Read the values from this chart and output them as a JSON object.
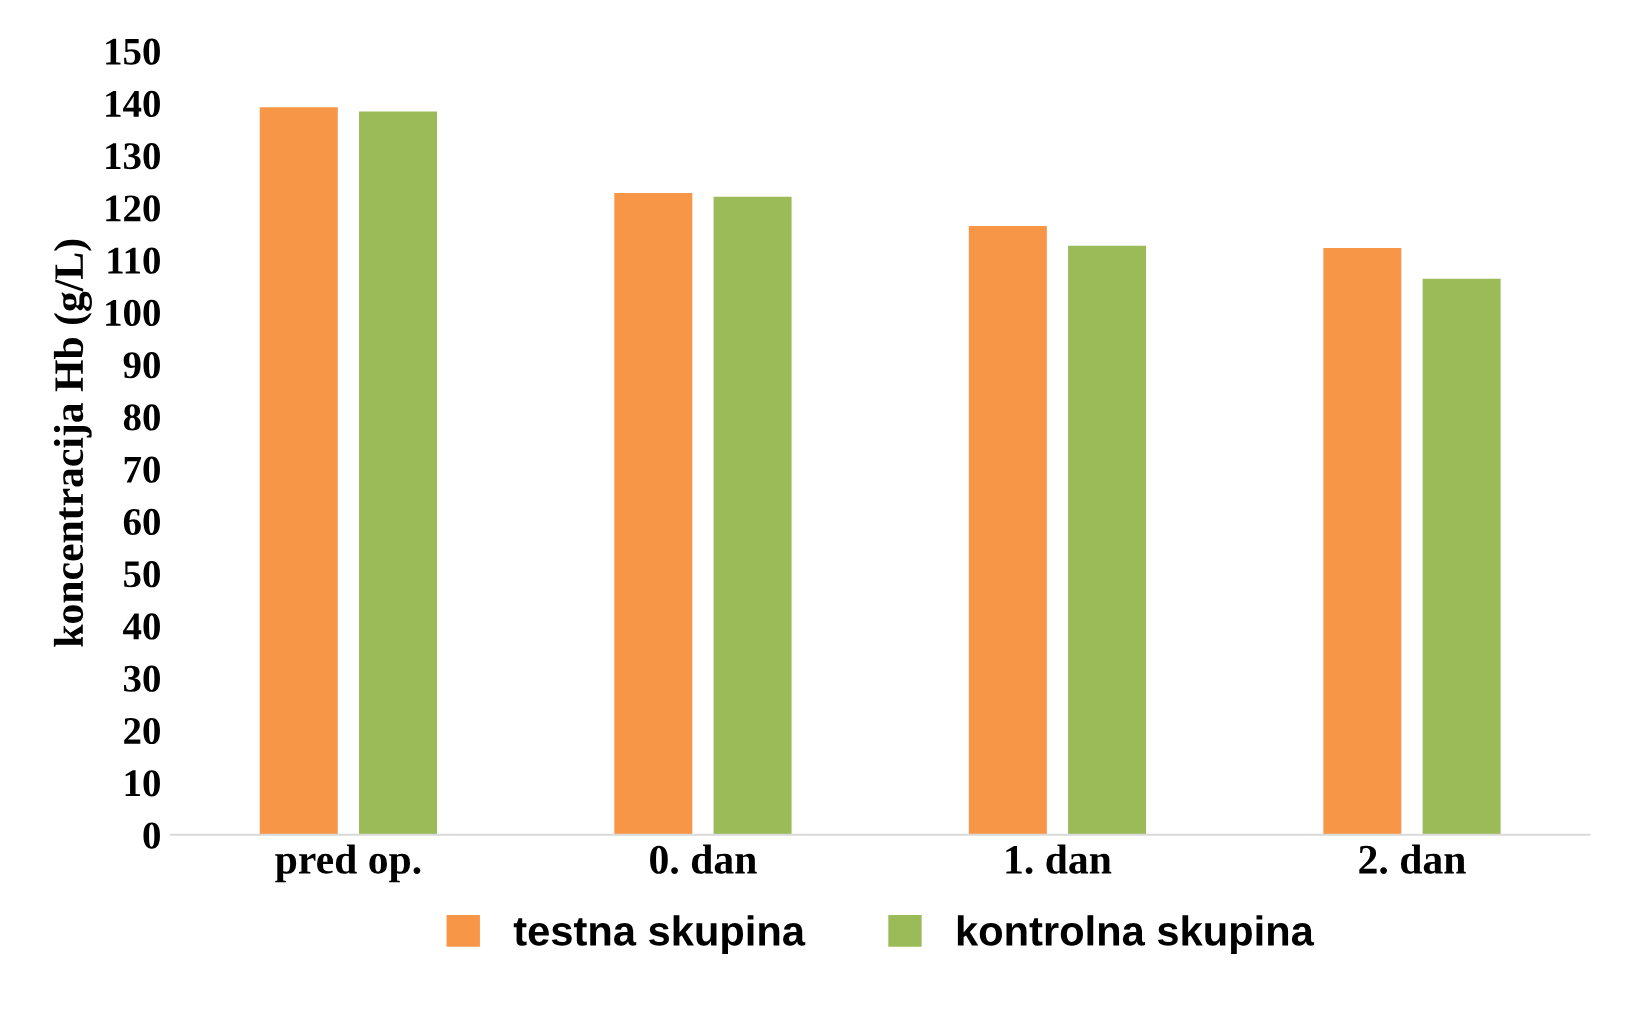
{
  "chart_data": {
    "type": "bar",
    "ylabel": "koncentracija Hb (g/L)",
    "categories": [
      "pred op.",
      "0. dan",
      "1. dan",
      "2. dan"
    ],
    "series": [
      {
        "name": "testna skupina",
        "color": "#f79646",
        "values": [
          139.2,
          122.8,
          116.5,
          112.3
        ]
      },
      {
        "name": "kontrolna skupina",
        "color": "#9bbb59",
        "values": [
          138.4,
          122.1,
          112.7,
          106.4
        ]
      }
    ],
    "ylim": [
      0,
      150
    ],
    "yticks": [
      0,
      10,
      20,
      30,
      40,
      50,
      60,
      70,
      80,
      90,
      100,
      110,
      120,
      130,
      140,
      150
    ],
    "grid": false,
    "legend": "bottom"
  }
}
